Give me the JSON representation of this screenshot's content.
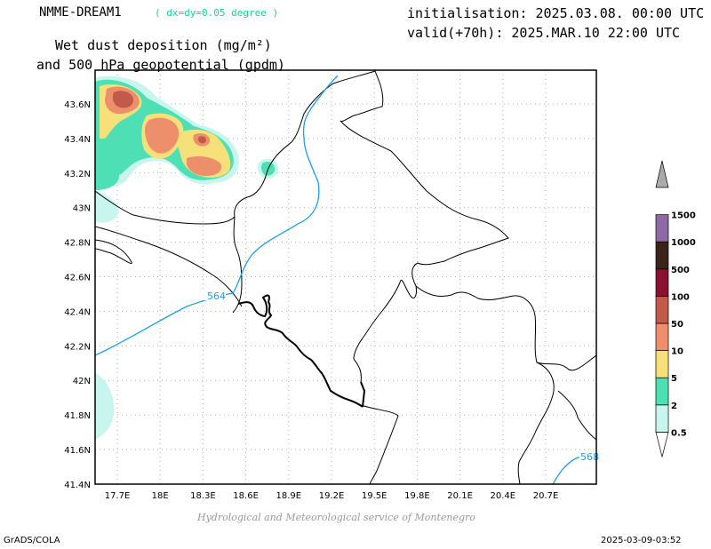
{
  "header": {
    "model": "NMME-DREAM1",
    "resolution": "( dx=dy=0.05 degree )",
    "init": "initialisation: 2025.03.08. 00:00 UTC",
    "valid": "valid(+70h): 2025.MAR.10 22:00 UTC",
    "title_line1": "Wet dust deposition (mg/m²)",
    "title_line2": "and 500 hPa geopotential (gpdm)"
  },
  "map": {
    "lon_labels": [
      "17.7E",
      "18E",
      "18.3E",
      "18.6E",
      "18.9E",
      "19.2E",
      "19.5E",
      "19.8E",
      "20.1E",
      "20.4E",
      "20.7E"
    ],
    "lat_labels": [
      "43.6N",
      "43.4N",
      "43.2N",
      "43N",
      "42.8N",
      "42.6N",
      "42.4N",
      "42.2N",
      "42N",
      "41.8N",
      "41.6N",
      "41.4N"
    ],
    "contours": [
      {
        "label": "564",
        "color": "#1f9ee8"
      },
      {
        "label": "568",
        "color": "#1f9ee8"
      }
    ]
  },
  "colorbar": {
    "levels": [
      "0.5",
      "2",
      "5",
      "10",
      "50",
      "100",
      "500",
      "1000",
      "1500"
    ],
    "colors": [
      "#c8f5ee",
      "#4ee0b4",
      "#f5e07a",
      "#ee8f6b",
      "#c25a4a",
      "#8a1230",
      "#3a2418",
      "#8c6aa6",
      "#aaaaaa"
    ]
  },
  "footer": {
    "credit": "Hydrological and Meteorological service of Montenegro",
    "left": "GrADS/COLA",
    "right": "2025-03-09-03:52"
  }
}
